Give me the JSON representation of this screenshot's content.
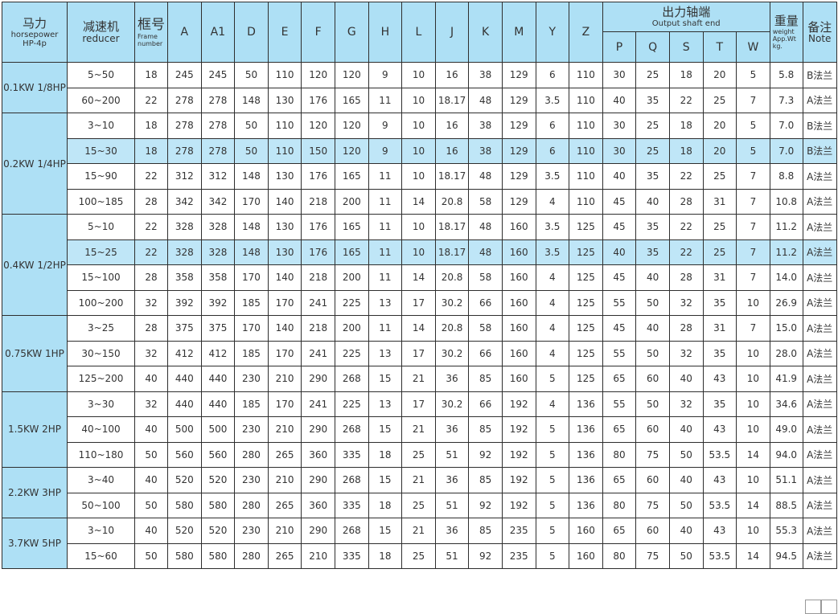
{
  "header": {
    "horsepower": {
      "cn": "马力",
      "en": "horsepower",
      "sub": "HP-4p"
    },
    "reducer": {
      "cn": "减速机",
      "en": "reducer"
    },
    "frame": {
      "cn": "框号",
      "en1": "Frame",
      "en2": "number"
    },
    "dims": [
      "A",
      "A1",
      "D",
      "E",
      "F",
      "G",
      "H",
      "L",
      "J",
      "K",
      "M",
      "Y",
      "Z"
    ],
    "output": {
      "cn": "出力轴端",
      "en": "Output shaft end",
      "cols": [
        "P",
        "Q",
        "S",
        "T",
        "W"
      ]
    },
    "weight": {
      "cn": "重量",
      "en1": "weight",
      "en2": "App.Wt",
      "en3": "kg."
    },
    "note": {
      "cn": "备注",
      "en": "Note"
    }
  },
  "colors": {
    "header_bg": "#aee0f5",
    "highlight_bg": "#bfe6f7",
    "border": "#2e2e2e"
  },
  "groups": [
    {
      "hp": "0.1KW 1/8HP",
      "rows": [
        {
          "cells": [
            "5~50",
            "18",
            "245",
            "245",
            "50",
            "110",
            "120",
            "120",
            "9",
            "10",
            "16",
            "38",
            "129",
            "6",
            "110",
            "30",
            "25",
            "18",
            "20",
            "5",
            "5.8",
            "B法兰"
          ]
        },
        {
          "cells": [
            "60~200",
            "22",
            "278",
            "278",
            "148",
            "130",
            "176",
            "165",
            "11",
            "10",
            "18.17",
            "48",
            "129",
            "3.5",
            "110",
            "40",
            "35",
            "22",
            "25",
            "7",
            "7.3",
            "A法兰"
          ]
        }
      ]
    },
    {
      "hp": "0.2KW 1/4HP",
      "rows": [
        {
          "cells": [
            "3~10",
            "18",
            "278",
            "278",
            "50",
            "110",
            "120",
            "120",
            "9",
            "10",
            "16",
            "38",
            "129",
            "6",
            "110",
            "30",
            "25",
            "18",
            "20",
            "5",
            "7.0",
            "B法兰"
          ]
        },
        {
          "highlight": true,
          "cells": [
            "15~30",
            "18",
            "278",
            "278",
            "50",
            "110",
            "150",
            "120",
            "9",
            "10",
            "16",
            "38",
            "129",
            "6",
            "110",
            "30",
            "25",
            "18",
            "20",
            "5",
            "7.0",
            "B法兰"
          ]
        },
        {
          "cells": [
            "15~90",
            "22",
            "312",
            "312",
            "148",
            "130",
            "176",
            "165",
            "11",
            "10",
            "18.17",
            "48",
            "129",
            "3.5",
            "110",
            "40",
            "35",
            "22",
            "25",
            "7",
            "8.8",
            "A法兰"
          ]
        },
        {
          "cells": [
            "100~185",
            "28",
            "342",
            "342",
            "170",
            "140",
            "218",
            "200",
            "11",
            "14",
            "20.8",
            "58",
            "129",
            "4",
            "110",
            "45",
            "40",
            "28",
            "31",
            "7",
            "10.8",
            "A法兰"
          ]
        }
      ]
    },
    {
      "hp": "0.4KW 1/2HP",
      "rows": [
        {
          "cells": [
            "5~10",
            "22",
            "328",
            "328",
            "148",
            "130",
            "176",
            "165",
            "11",
            "10",
            "18.17",
            "48",
            "160",
            "3.5",
            "125",
            "45",
            "35",
            "22",
            "25",
            "7",
            "11.2",
            "A法兰"
          ]
        },
        {
          "highlight": true,
          "cells": [
            "15~25",
            "22",
            "328",
            "328",
            "148",
            "130",
            "176",
            "165",
            "11",
            "10",
            "18.17",
            "48",
            "160",
            "3.5",
            "125",
            "40",
            "35",
            "22",
            "25",
            "7",
            "11.2",
            "A法兰"
          ]
        },
        {
          "cells": [
            "15~100",
            "28",
            "358",
            "358",
            "170",
            "140",
            "218",
            "200",
            "11",
            "14",
            "20.8",
            "58",
            "160",
            "4",
            "125",
            "45",
            "40",
            "28",
            "31",
            "7",
            "14.0",
            "A法兰"
          ]
        },
        {
          "cells": [
            "100~200",
            "32",
            "392",
            "392",
            "185",
            "170",
            "241",
            "225",
            "13",
            "17",
            "30.2",
            "66",
            "160",
            "4",
            "125",
            "55",
            "50",
            "32",
            "35",
            "10",
            "26.9",
            "A法兰"
          ]
        }
      ]
    },
    {
      "hp": "0.75KW 1HP",
      "rows": [
        {
          "cells": [
            "3~25",
            "28",
            "375",
            "375",
            "170",
            "140",
            "218",
            "200",
            "11",
            "14",
            "20.8",
            "58",
            "160",
            "4",
            "125",
            "45",
            "40",
            "28",
            "31",
            "7",
            "15.0",
            "A法兰"
          ]
        },
        {
          "cells": [
            "30~150",
            "32",
            "412",
            "412",
            "185",
            "170",
            "241",
            "225",
            "13",
            "17",
            "30.2",
            "66",
            "160",
            "4",
            "125",
            "55",
            "50",
            "32",
            "35",
            "10",
            "28.0",
            "A法兰"
          ]
        },
        {
          "cells": [
            "125~200",
            "40",
            "440",
            "440",
            "230",
            "210",
            "290",
            "268",
            "15",
            "21",
            "36",
            "85",
            "160",
            "5",
            "125",
            "65",
            "60",
            "40",
            "43",
            "10",
            "41.9",
            "A法兰"
          ]
        }
      ]
    },
    {
      "hp": "1.5KW 2HP",
      "rows": [
        {
          "cells": [
            "3~30",
            "32",
            "440",
            "440",
            "185",
            "170",
            "241",
            "225",
            "13",
            "17",
            "30.2",
            "66",
            "192",
            "4",
            "136",
            "55",
            "50",
            "32",
            "35",
            "10",
            "34.6",
            "A法兰"
          ]
        },
        {
          "cells": [
            "40~100",
            "40",
            "500",
            "500",
            "230",
            "210",
            "290",
            "268",
            "15",
            "21",
            "36",
            "85",
            "192",
            "5",
            "136",
            "65",
            "60",
            "40",
            "43",
            "10",
            "49.0",
            "A法兰"
          ]
        },
        {
          "cells": [
            "110~180",
            "50",
            "560",
            "560",
            "280",
            "265",
            "360",
            "335",
            "18",
            "25",
            "51",
            "92",
            "192",
            "5",
            "136",
            "80",
            "75",
            "50",
            "53.5",
            "14",
            "94.0",
            "A法兰"
          ]
        }
      ]
    },
    {
      "hp": "2.2KW 3HP",
      "rows": [
        {
          "cells": [
            "3~40",
            "40",
            "520",
            "520",
            "230",
            "210",
            "290",
            "268",
            "15",
            "21",
            "36",
            "85",
            "192",
            "5",
            "136",
            "65",
            "60",
            "40",
            "43",
            "10",
            "51.1",
            "A法兰"
          ]
        },
        {
          "cells": [
            "50~100",
            "50",
            "580",
            "580",
            "280",
            "265",
            "360",
            "335",
            "18",
            "25",
            "51",
            "92",
            "192",
            "5",
            "136",
            "80",
            "75",
            "50",
            "53.5",
            "14",
            "88.5",
            "A法兰"
          ]
        }
      ]
    },
    {
      "hp": "3.7KW 5HP",
      "rows": [
        {
          "cells": [
            "3~10",
            "40",
            "520",
            "520",
            "230",
            "210",
            "290",
            "268",
            "15",
            "21",
            "36",
            "85",
            "235",
            "5",
            "160",
            "65",
            "60",
            "40",
            "43",
            "10",
            "55.3",
            "A法兰"
          ]
        },
        {
          "cells": [
            "15~60",
            "50",
            "580",
            "580",
            "280",
            "265",
            "210",
            "335",
            "18",
            "25",
            "51",
            "92",
            "235",
            "5",
            "160",
            "80",
            "75",
            "50",
            "53.5",
            "14",
            "94.5",
            "A法兰"
          ]
        }
      ]
    }
  ]
}
